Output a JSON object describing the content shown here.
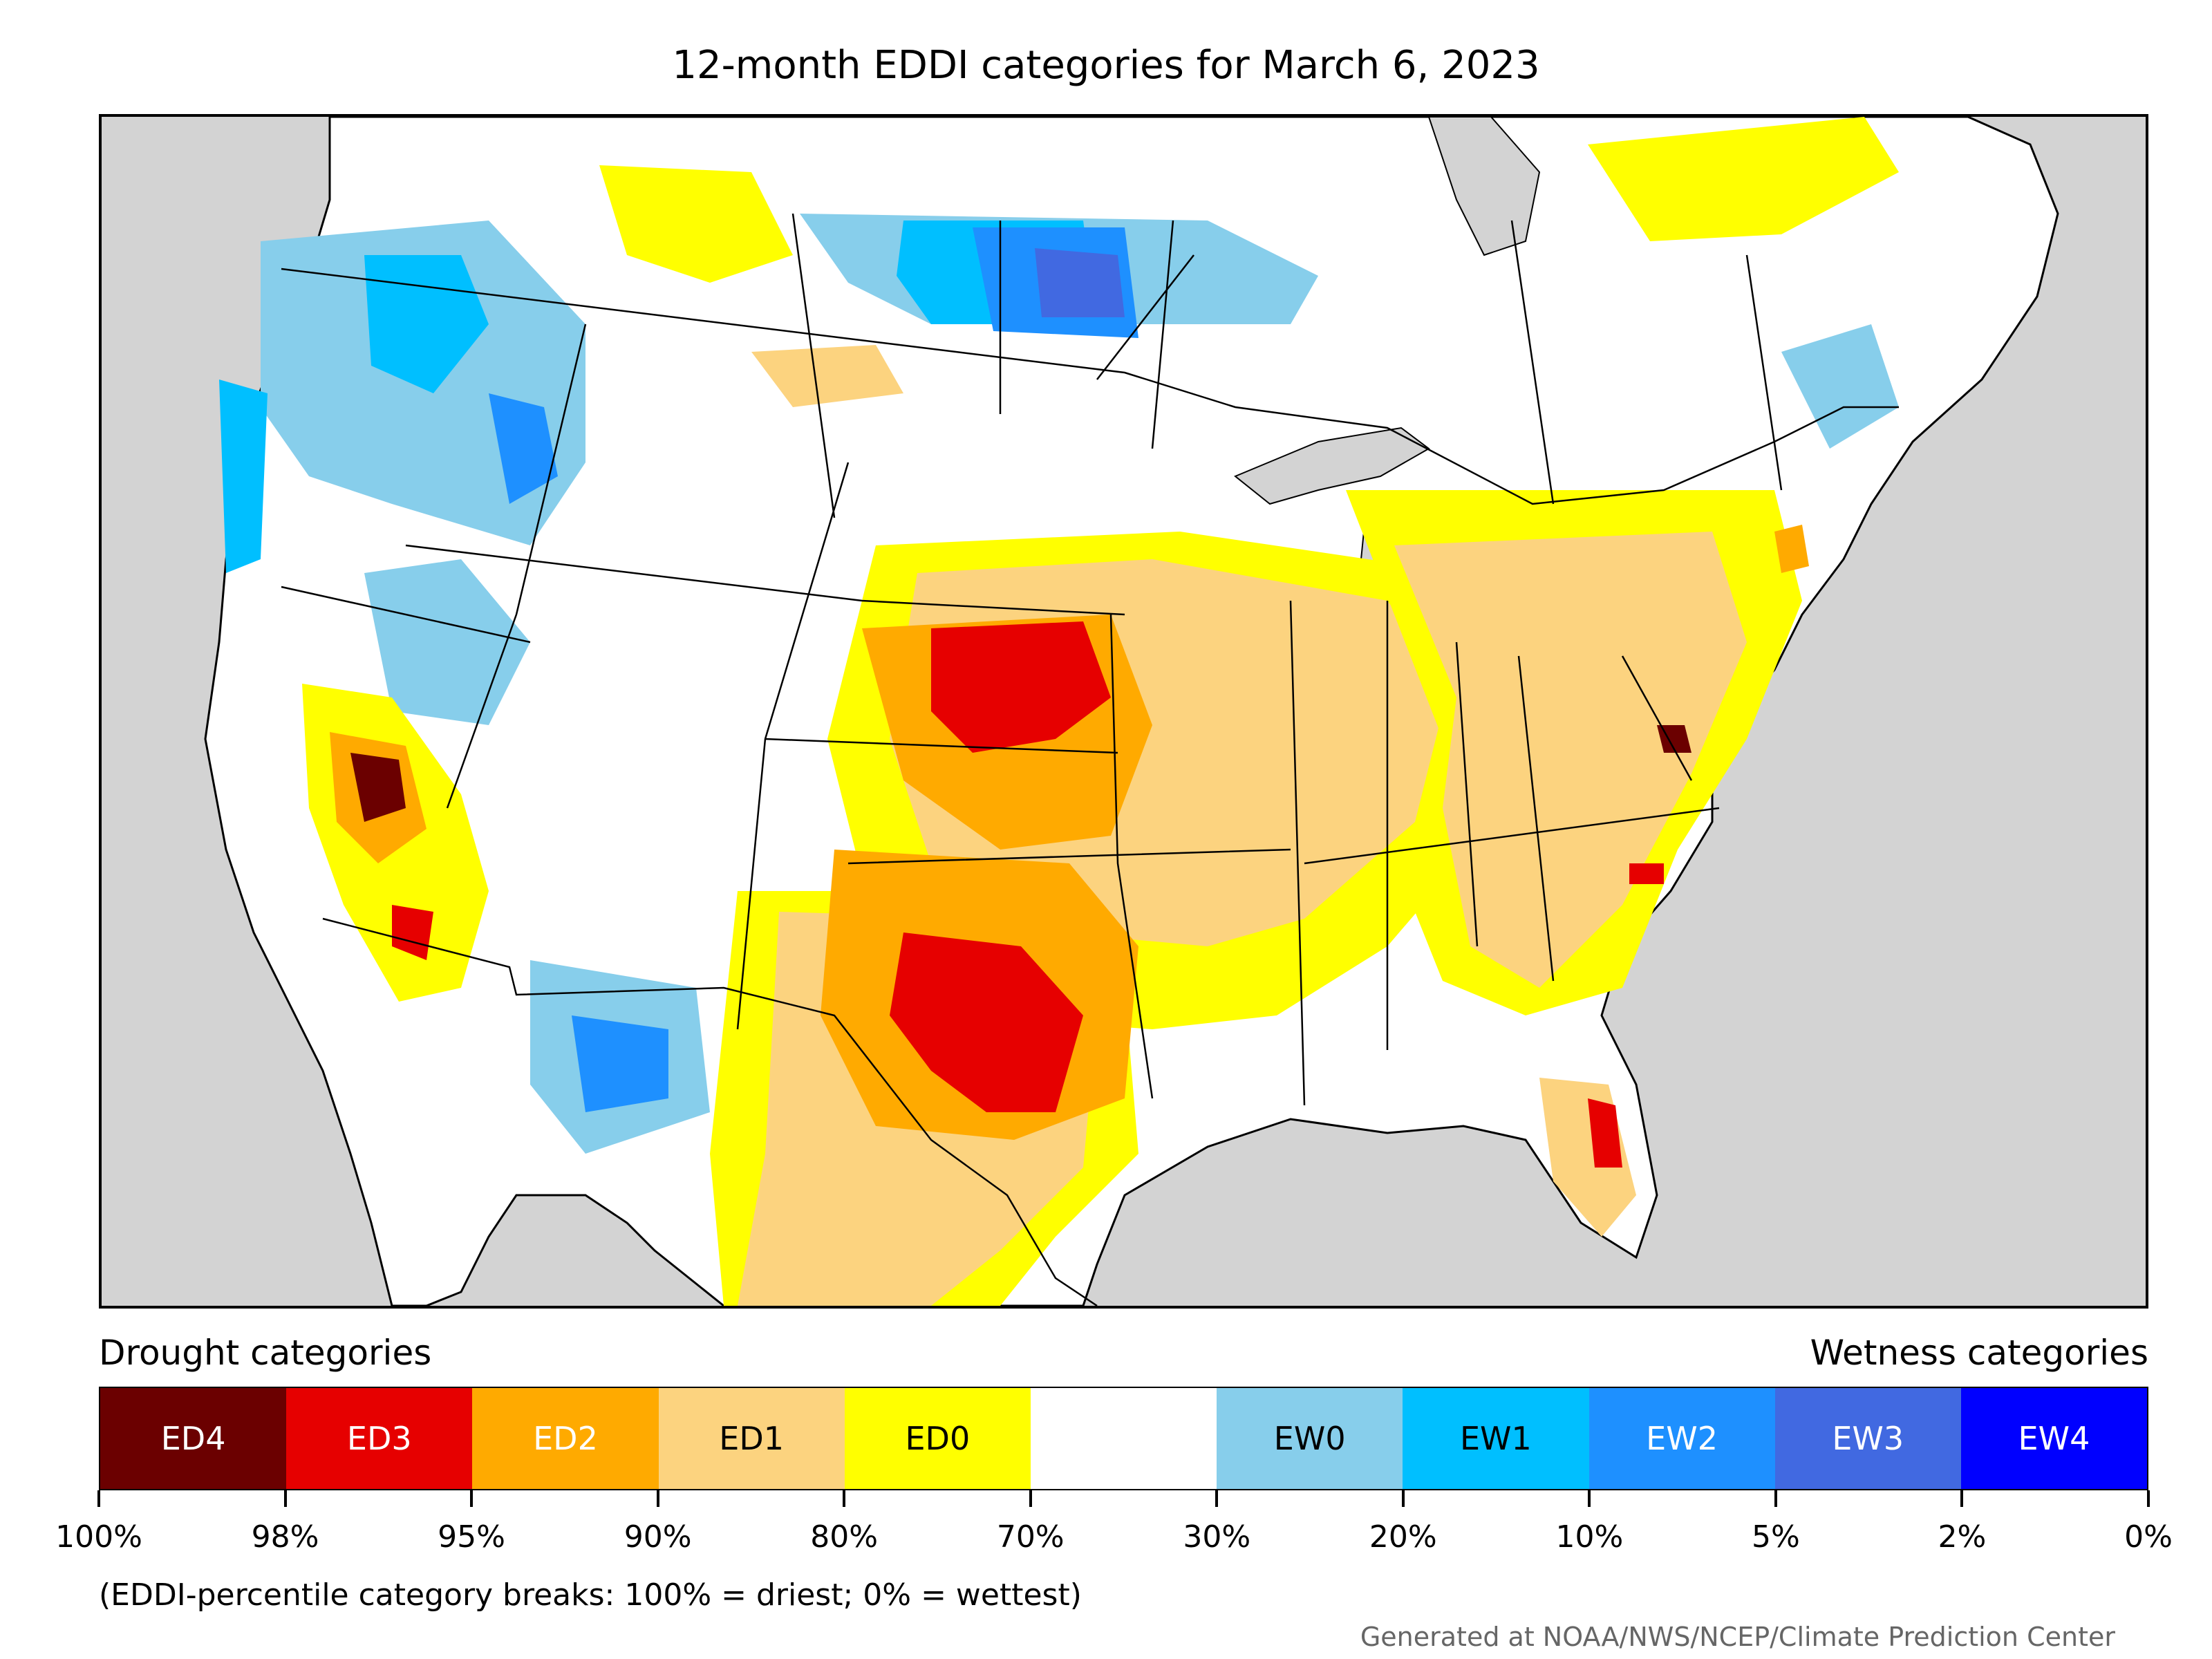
{
  "title": "12-month EDDI categories for March 6, 2023",
  "legend": {
    "drought_label": "Drought categories",
    "wetness_label": "Wetness categories",
    "categories": [
      {
        "code": "ED4",
        "color": "#6b0000",
        "text_color": "#ffffff"
      },
      {
        "code": "ED3",
        "color": "#e60000",
        "text_color": "#ffffff"
      },
      {
        "code": "ED2",
        "color": "#ffaa00",
        "text_color": "#ffffff"
      },
      {
        "code": "ED1",
        "color": "#fcd37f",
        "text_color": "#000000"
      },
      {
        "code": "ED0",
        "color": "#ffff00",
        "text_color": "#000000"
      },
      {
        "code": "",
        "color": "#ffffff",
        "text_color": "#000000"
      },
      {
        "code": "EW0",
        "color": "#87ceeb",
        "text_color": "#000000"
      },
      {
        "code": "EW1",
        "color": "#00bfff",
        "text_color": "#000000"
      },
      {
        "code": "EW2",
        "color": "#1e90ff",
        "text_color": "#ffffff"
      },
      {
        "code": "EW3",
        "color": "#4169e1",
        "text_color": "#ffffff"
      },
      {
        "code": "EW4",
        "color": "#0000ff",
        "text_color": "#ffffff"
      }
    ],
    "breaks": [
      "100%",
      "98%",
      "95%",
      "90%",
      "80%",
      "70%",
      "30%",
      "20%",
      "10%",
      "5%",
      "2%",
      "0%"
    ],
    "note": "(EDDI-percentile category breaks: 100% = driest; 0% = wettest)"
  },
  "credit": "Generated at NOAA/NWS/NCEP/Climate Prediction Center",
  "map": {
    "ocean_color": "#d3d3d3",
    "land_color": "#ffffff",
    "border_color": "#000000"
  }
}
